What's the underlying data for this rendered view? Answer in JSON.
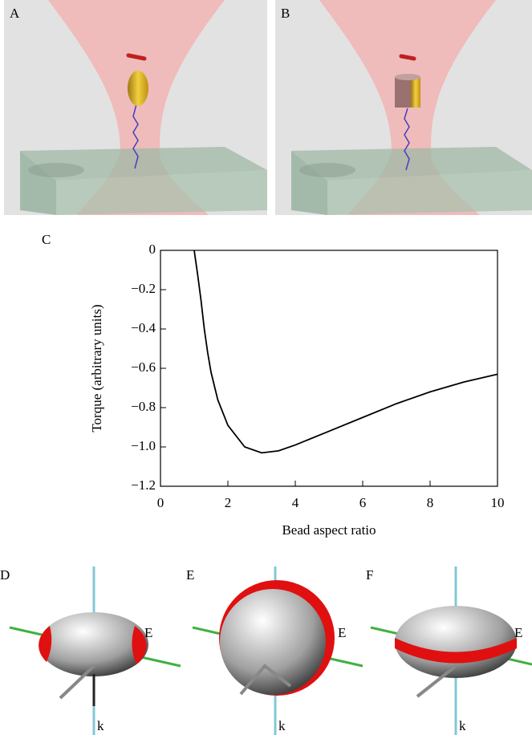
{
  "panel_labels": [
    "A",
    "B",
    "C",
    "D",
    "E",
    "F"
  ],
  "orientation_panels": [
    {
      "field": "E",
      "wavevector": "k"
    },
    {
      "field": "E",
      "wavevector": "k"
    },
    {
      "field": "E",
      "wavevector": "k"
    }
  ],
  "chart_data": {
    "type": "line",
    "x_label": "Bead aspect ratio",
    "y_label": "Torque  (arbitrary units)",
    "x": [
      1.0,
      1.1,
      1.2,
      1.3,
      1.4,
      1.5,
      1.7,
      2.0,
      2.5,
      3.0,
      3.5,
      4.0,
      5.0,
      6.0,
      7.0,
      8.0,
      9.0,
      10.0
    ],
    "values": [
      0,
      -0.12,
      -0.25,
      -0.4,
      -0.52,
      -0.62,
      -0.76,
      -0.89,
      -1.0,
      -1.03,
      -1.02,
      -0.99,
      -0.92,
      -0.85,
      -0.78,
      -0.72,
      -0.67,
      -0.63
    ],
    "color": "#000000",
    "xlim": [
      0,
      10
    ],
    "xticks": [
      0,
      2,
      4,
      6,
      8,
      10
    ],
    "ylim": [
      -1.2,
      0
    ],
    "yticks": [
      0,
      {
        "value": -0.2,
        "label": "−0.2"
      },
      {
        "value": -0.4,
        "label": "−0.4"
      },
      {
        "value": -0.6,
        "label": "−0.6"
      },
      {
        "value": -0.8,
        "label": "−0.8"
      },
      {
        "value": -1.0,
        "label": "−1.0"
      },
      {
        "value": -1.2,
        "label": "−1.2"
      }
    ],
    "grid": false
  }
}
